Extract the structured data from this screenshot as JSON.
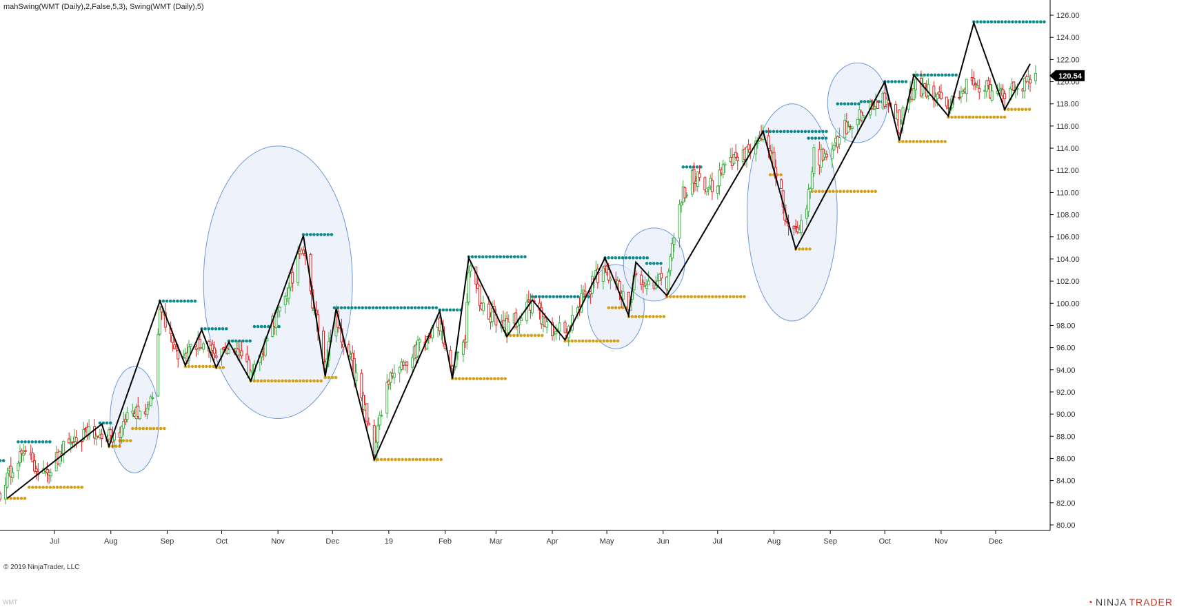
{
  "header": {
    "indicator_label": "mahSwing(WMT (Daily),2,False,5,3), Swing(WMT (Daily),5)"
  },
  "footer": {
    "copyright": "© 2019 NinjaTrader, LLC",
    "watermark": "WMT",
    "logo_ninja": "NINJA",
    "logo_trader": "TRADER"
  },
  "colors": {
    "up_candle": "#3cb043",
    "down_candle": "#e02020",
    "swing_line": "#000000",
    "swing_high_dots": "#0a8a8a",
    "swing_low_dots": "#d4a017",
    "highlight_circle_fill": "#e8eef9",
    "highlight_circle_stroke": "#6d97d8",
    "axis": "#000000",
    "price_marker_bg": "#000000",
    "price_marker_text": "#ffffff"
  },
  "chart_data": {
    "type": "candlestick",
    "symbol": "WMT",
    "timeframe": "Daily",
    "x_start": "2018-06-01",
    "x_end": "2019-12-31",
    "ylim": [
      79.5,
      126.5
    ],
    "y_ticks": [
      80,
      82,
      84,
      86,
      88,
      90,
      92,
      94,
      96,
      98,
      100,
      102,
      104,
      106,
      108,
      110,
      112,
      114,
      116,
      118,
      120,
      122,
      124,
      126
    ],
    "y_tick_labels": [
      "80.00",
      "82.00",
      "84.00",
      "86.00",
      "88.00",
      "90.00",
      "92.00",
      "94.00",
      "96.00",
      "98.00",
      "100.00",
      "102.00",
      "104.00",
      "106.00",
      "108.00",
      "110.00",
      "112.00",
      "114.00",
      "116.00",
      "118.00",
      "120.00",
      "122.00",
      "124.00",
      "126.00"
    ],
    "x_tick_labels": [
      {
        "date": "2018-07-01",
        "label": "Jul"
      },
      {
        "date": "2018-08-01",
        "label": "Aug"
      },
      {
        "date": "2018-09-01",
        "label": "Sep"
      },
      {
        "date": "2018-10-01",
        "label": "Oct"
      },
      {
        "date": "2018-11-01",
        "label": "Nov"
      },
      {
        "date": "2018-12-01",
        "label": "Dec"
      },
      {
        "date": "2019-01-01",
        "label": "19"
      },
      {
        "date": "2019-02-01",
        "label": "Feb"
      },
      {
        "date": "2019-03-01",
        "label": "Mar"
      },
      {
        "date": "2019-04-01",
        "label": "Apr"
      },
      {
        "date": "2019-05-01",
        "label": "May"
      },
      {
        "date": "2019-06-01",
        "label": "Jun"
      },
      {
        "date": "2019-07-01",
        "label": "Jul"
      },
      {
        "date": "2019-08-01",
        "label": "Aug"
      },
      {
        "date": "2019-09-01",
        "label": "Sep"
      },
      {
        "date": "2019-10-01",
        "label": "Oct"
      },
      {
        "date": "2019-11-01",
        "label": "Nov"
      },
      {
        "date": "2019-12-01",
        "label": "Dec"
      }
    ],
    "last_price": "120.54",
    "swing_line": [
      {
        "date": "2018-06-05",
        "price": 82.4
      },
      {
        "date": "2018-07-27",
        "price": 89.1
      },
      {
        "date": "2018-07-31",
        "price": 87.1
      },
      {
        "date": "2018-08-28",
        "price": 100.2
      },
      {
        "date": "2018-09-11",
        "price": 94.4
      },
      {
        "date": "2018-09-20",
        "price": 97.6
      },
      {
        "date": "2018-09-28",
        "price": 94.2
      },
      {
        "date": "2018-10-05",
        "price": 96.5
      },
      {
        "date": "2018-10-17",
        "price": 93.0
      },
      {
        "date": "2018-11-15",
        "price": 106.1
      },
      {
        "date": "2018-11-27",
        "price": 93.4
      },
      {
        "date": "2018-12-03",
        "price": 99.5
      },
      {
        "date": "2018-12-24",
        "price": 85.9
      },
      {
        "date": "2019-01-29",
        "price": 99.3
      },
      {
        "date": "2019-02-05",
        "price": 93.2
      },
      {
        "date": "2019-02-14",
        "price": 104.1
      },
      {
        "date": "2019-03-07",
        "price": 97.0
      },
      {
        "date": "2019-03-21",
        "price": 100.3
      },
      {
        "date": "2019-04-08",
        "price": 96.7
      },
      {
        "date": "2019-04-30",
        "price": 104.1
      },
      {
        "date": "2019-05-13",
        "price": 98.9
      },
      {
        "date": "2019-05-17",
        "price": 103.7
      },
      {
        "date": "2019-06-03",
        "price": 100.7
      },
      {
        "date": "2019-07-26",
        "price": 115.5
      },
      {
        "date": "2019-08-13",
        "price": 104.9
      },
      {
        "date": "2019-10-01",
        "price": 120.0
      },
      {
        "date": "2019-10-09",
        "price": 114.7
      },
      {
        "date": "2019-10-17",
        "price": 120.6
      },
      {
        "date": "2019-11-05",
        "price": 116.9
      },
      {
        "date": "2019-11-19",
        "price": 125.3
      },
      {
        "date": "2019-12-06",
        "price": 117.5
      },
      {
        "date": "2019-12-20",
        "price": 121.6
      }
    ],
    "swing_high_levels": [
      {
        "start": "2018-06-01",
        "end": "2018-06-04",
        "price": 85.8
      },
      {
        "start": "2018-06-11",
        "end": "2018-06-29",
        "price": 87.5
      },
      {
        "start": "2018-07-26",
        "end": "2018-08-02",
        "price": 89.2
      },
      {
        "start": "2018-08-28",
        "end": "2018-09-18",
        "price": 100.2
      },
      {
        "start": "2018-09-20",
        "end": "2018-10-05",
        "price": 97.7
      },
      {
        "start": "2018-10-05",
        "end": "2018-10-18",
        "price": 96.6
      },
      {
        "start": "2018-10-19",
        "end": "2018-11-02",
        "price": 97.9
      },
      {
        "start": "2018-11-15",
        "end": "2018-12-01",
        "price": 106.2
      },
      {
        "start": "2018-12-02",
        "end": "2019-01-29",
        "price": 99.6
      },
      {
        "start": "2019-01-29",
        "end": "2019-02-10",
        "price": 99.4
      },
      {
        "start": "2019-02-14",
        "end": "2019-03-17",
        "price": 104.2
      },
      {
        "start": "2019-03-21",
        "end": "2019-04-21",
        "price": 100.6
      },
      {
        "start": "2019-04-30",
        "end": "2019-05-25",
        "price": 104.1
      },
      {
        "start": "2019-05-23",
        "end": "2019-06-01",
        "price": 103.6
      },
      {
        "start": "2019-06-12",
        "end": "2019-06-23",
        "price": 112.3
      },
      {
        "start": "2019-07-26",
        "end": "2019-08-31",
        "price": 115.5
      },
      {
        "start": "2019-08-20",
        "end": "2019-08-31",
        "price": 114.9
      },
      {
        "start": "2019-09-05",
        "end": "2019-09-17",
        "price": 118.0
      },
      {
        "start": "2019-09-18",
        "end": "2019-10-01",
        "price": 118.2
      },
      {
        "start": "2019-10-01",
        "end": "2019-10-13",
        "price": 120.0
      },
      {
        "start": "2019-10-17",
        "end": "2019-11-11",
        "price": 120.6
      },
      {
        "start": "2019-11-19",
        "end": "2019-12-28",
        "price": 125.4
      }
    ],
    "swing_low_levels": [
      {
        "start": "2018-06-05",
        "end": "2018-06-15",
        "price": 82.4
      },
      {
        "start": "2018-06-17",
        "end": "2018-07-17",
        "price": 83.4
      },
      {
        "start": "2018-07-31",
        "end": "2018-08-06",
        "price": 87.1
      },
      {
        "start": "2018-08-06",
        "end": "2018-08-13",
        "price": 87.6
      },
      {
        "start": "2018-08-13",
        "end": "2018-08-31",
        "price": 88.7
      },
      {
        "start": "2018-09-11",
        "end": "2018-09-28",
        "price": 94.3
      },
      {
        "start": "2018-09-28",
        "end": "2018-10-02",
        "price": 94.2
      },
      {
        "start": "2018-10-17",
        "end": "2018-11-26",
        "price": 93.0
      },
      {
        "start": "2018-11-27",
        "end": "2018-12-03",
        "price": 93.3
      },
      {
        "start": "2018-12-24",
        "end": "2019-01-31",
        "price": 85.9
      },
      {
        "start": "2019-02-05",
        "end": "2019-03-07",
        "price": 93.2
      },
      {
        "start": "2019-03-07",
        "end": "2019-03-28",
        "price": 97.1
      },
      {
        "start": "2019-04-08",
        "end": "2019-05-08",
        "price": 96.6
      },
      {
        "start": "2019-05-02",
        "end": "2019-05-13",
        "price": 99.6
      },
      {
        "start": "2019-05-13",
        "end": "2019-06-02",
        "price": 98.8
      },
      {
        "start": "2019-06-03",
        "end": "2019-07-17",
        "price": 100.6
      },
      {
        "start": "2019-07-30",
        "end": "2019-08-06",
        "price": 111.6
      },
      {
        "start": "2019-08-13",
        "end": "2019-08-21",
        "price": 104.9
      },
      {
        "start": "2019-08-22",
        "end": "2019-09-27",
        "price": 110.1
      },
      {
        "start": "2019-10-09",
        "end": "2019-11-04",
        "price": 114.6
      },
      {
        "start": "2019-11-05",
        "end": "2019-12-06",
        "price": 116.8
      },
      {
        "start": "2019-12-06",
        "end": "2019-12-20",
        "price": 117.5
      }
    ],
    "highlight_circles": [
      {
        "date": "2018-08-14",
        "price": 89.5,
        "rx_days": 13.4,
        "ry_price": 4.8
      },
      {
        "date": "2018-11-01",
        "price": 101.9,
        "rx_days": 41,
        "ry_price": 12.3
      },
      {
        "date": "2019-05-06",
        "price": 99.7,
        "rx_days": 15.6,
        "ry_price": 3.8
      },
      {
        "date": "2019-05-27",
        "price": 103.5,
        "rx_days": 16.8,
        "ry_price": 3.3
      },
      {
        "date": "2019-08-11",
        "price": 108.2,
        "rx_days": 24.8,
        "ry_price": 9.8
      },
      {
        "date": "2019-09-16",
        "price": 118.1,
        "rx_days": 16.5,
        "ry_price": 3.6
      }
    ],
    "price_anchors": [
      {
        "date": "2018-06-01",
        "price": 83.0
      },
      {
        "date": "2018-06-05",
        "price": 84.2
      },
      {
        "date": "2018-06-12",
        "price": 86.6
      },
      {
        "date": "2018-06-20",
        "price": 85.2
      },
      {
        "date": "2018-06-27",
        "price": 84.5
      },
      {
        "date": "2018-07-06",
        "price": 86.8
      },
      {
        "date": "2018-07-17",
        "price": 88.0
      },
      {
        "date": "2018-07-27",
        "price": 88.6
      },
      {
        "date": "2018-08-01",
        "price": 87.6
      },
      {
        "date": "2018-08-10",
        "price": 89.5
      },
      {
        "date": "2018-08-17",
        "price": 90.3
      },
      {
        "date": "2018-08-24",
        "price": 91.0
      },
      {
        "date": "2018-08-28",
        "price": 99.5
      },
      {
        "date": "2018-09-05",
        "price": 96.0
      },
      {
        "date": "2018-09-11",
        "price": 95.0
      },
      {
        "date": "2018-09-20",
        "price": 96.7
      },
      {
        "date": "2018-09-28",
        "price": 94.8
      },
      {
        "date": "2018-10-05",
        "price": 96.0
      },
      {
        "date": "2018-10-17",
        "price": 93.8
      },
      {
        "date": "2018-10-25",
        "price": 96.5
      },
      {
        "date": "2018-11-02",
        "price": 100.0
      },
      {
        "date": "2018-11-09",
        "price": 102.5
      },
      {
        "date": "2018-11-15",
        "price": 105.0
      },
      {
        "date": "2018-11-20",
        "price": 100.0
      },
      {
        "date": "2018-11-27",
        "price": 94.5
      },
      {
        "date": "2018-12-03",
        "price": 98.5
      },
      {
        "date": "2018-12-10",
        "price": 95.5
      },
      {
        "date": "2018-12-18",
        "price": 91.0
      },
      {
        "date": "2018-12-24",
        "price": 86.8
      },
      {
        "date": "2018-12-31",
        "price": 92.5
      },
      {
        "date": "2019-01-10",
        "price": 95.0
      },
      {
        "date": "2019-01-18",
        "price": 96.0
      },
      {
        "date": "2019-01-29",
        "price": 98.0
      },
      {
        "date": "2019-02-05",
        "price": 94.5
      },
      {
        "date": "2019-02-12",
        "price": 96.5
      },
      {
        "date": "2019-02-14",
        "price": 103.5
      },
      {
        "date": "2019-02-21",
        "price": 100.0
      },
      {
        "date": "2019-03-01",
        "price": 98.5
      },
      {
        "date": "2019-03-07",
        "price": 97.6
      },
      {
        "date": "2019-03-14",
        "price": 98.8
      },
      {
        "date": "2019-03-21",
        "price": 99.8
      },
      {
        "date": "2019-03-29",
        "price": 98.0
      },
      {
        "date": "2019-04-08",
        "price": 97.2
      },
      {
        "date": "2019-04-18",
        "price": 100.5
      },
      {
        "date": "2019-04-30",
        "price": 103.5
      },
      {
        "date": "2019-05-08",
        "price": 101.0
      },
      {
        "date": "2019-05-13",
        "price": 99.5
      },
      {
        "date": "2019-05-17",
        "price": 102.8
      },
      {
        "date": "2019-05-24",
        "price": 102.0
      },
      {
        "date": "2019-06-03",
        "price": 102.0
      },
      {
        "date": "2019-06-07",
        "price": 106.0
      },
      {
        "date": "2019-06-12",
        "price": 110.0
      },
      {
        "date": "2019-06-18",
        "price": 111.5
      },
      {
        "date": "2019-06-27",
        "price": 110.5
      },
      {
        "date": "2019-07-08",
        "price": 112.5
      },
      {
        "date": "2019-07-18",
        "price": 114.0
      },
      {
        "date": "2019-07-26",
        "price": 114.8
      },
      {
        "date": "2019-08-02",
        "price": 112.0
      },
      {
        "date": "2019-08-08",
        "price": 107.5
      },
      {
        "date": "2019-08-13",
        "price": 106.5
      },
      {
        "date": "2019-08-19",
        "price": 108.5
      },
      {
        "date": "2019-08-23",
        "price": 113.5
      },
      {
        "date": "2019-08-30",
        "price": 112.8
      },
      {
        "date": "2019-09-06",
        "price": 115.0
      },
      {
        "date": "2019-09-12",
        "price": 116.5
      },
      {
        "date": "2019-09-19",
        "price": 117.0
      },
      {
        "date": "2019-09-27",
        "price": 117.8
      },
      {
        "date": "2019-10-03",
        "price": 118.8
      },
      {
        "date": "2019-10-09",
        "price": 116.0
      },
      {
        "date": "2019-10-17",
        "price": 119.5
      },
      {
        "date": "2019-10-25",
        "price": 119.0
      },
      {
        "date": "2019-11-05",
        "price": 117.8
      },
      {
        "date": "2019-11-12",
        "price": 119.3
      },
      {
        "date": "2019-11-19",
        "price": 120.0
      },
      {
        "date": "2019-11-26",
        "price": 119.4
      },
      {
        "date": "2019-12-06",
        "price": 118.5
      },
      {
        "date": "2019-12-13",
        "price": 119.5
      },
      {
        "date": "2019-12-20",
        "price": 120.5
      },
      {
        "date": "2019-12-23",
        "price": 120.54
      }
    ]
  }
}
